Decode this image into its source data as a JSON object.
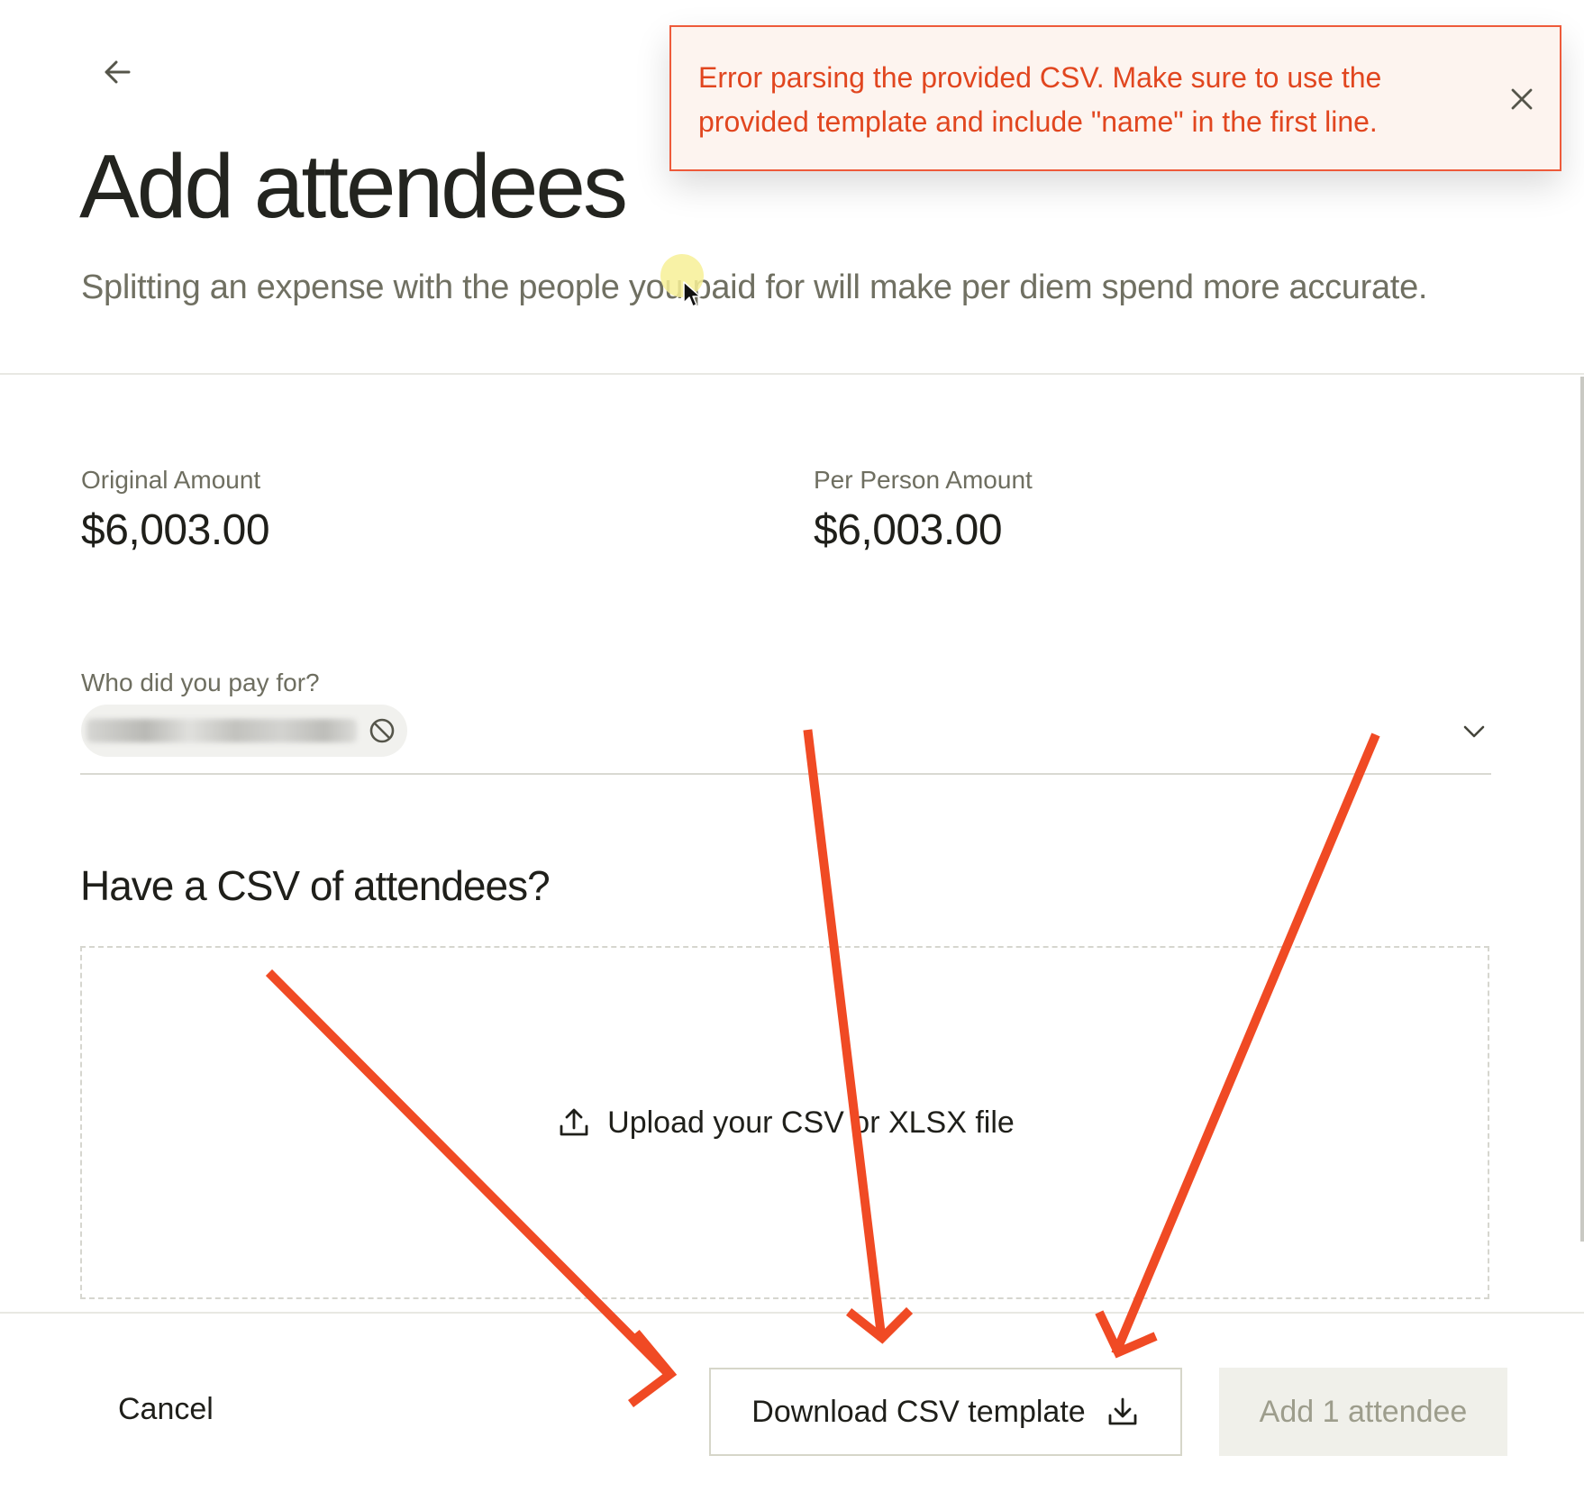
{
  "header": {
    "back_icon": "arrow-left-icon",
    "title": "Add attendees",
    "subtitle": "Splitting an expense with the people you paid for will make per diem spend more accurate."
  },
  "amounts": {
    "original_label": "Original Amount",
    "original_value": "$6,003.00",
    "per_person_label": "Per Person Amount",
    "per_person_value": "$6,003.00"
  },
  "attendees_field": {
    "label": "Who did you pay for?",
    "selected_count": 1,
    "chip_remove_icon": "remove-circle-icon",
    "dropdown_icon": "chevron-down-icon"
  },
  "csv_section": {
    "heading": "Have a CSV of attendees?",
    "upload_icon": "upload-icon",
    "upload_text": "Upload your CSV or XLSX file"
  },
  "footer": {
    "cancel_label": "Cancel",
    "download_label": "Download CSV template",
    "download_icon": "download-icon",
    "add_label": "Add 1 attendee"
  },
  "toast": {
    "message": "Error parsing the provided CSV. Make sure to use the provided template and include \"name\" in the first line.",
    "close_icon": "close-icon",
    "color": "#e1461f"
  },
  "annotations": {
    "arrow_color": "#f04a24",
    "arrow_count": 3
  }
}
